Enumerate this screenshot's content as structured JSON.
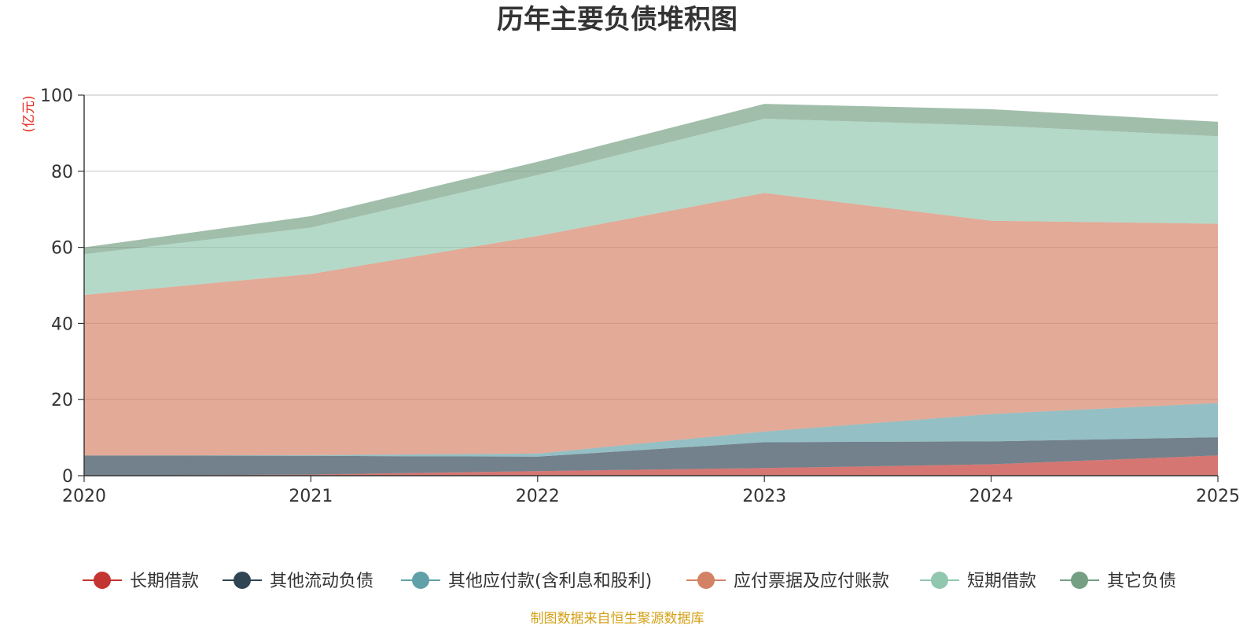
{
  "chart_data": {
    "type": "area",
    "stacked": true,
    "title": "历年主要负债堆积图",
    "unit_label": "(亿元)",
    "categories": [
      "2020",
      "2021",
      "2022",
      "2023",
      "2024",
      "2025"
    ],
    "ylim": [
      0,
      100
    ],
    "yticks": [
      0,
      20,
      40,
      60,
      80,
      100
    ],
    "grid": true,
    "legend_position": "bottom",
    "series": [
      {
        "name": "长期借款",
        "values": [
          0.0,
          0.3,
          1.2,
          2.0,
          3.0,
          5.3
        ]
      },
      {
        "name": "其他流动负债",
        "values": [
          5.3,
          4.9,
          3.8,
          6.8,
          6.0,
          4.8
        ]
      },
      {
        "name": "其他应付款(含利息和股利)",
        "values": [
          0.0,
          0.2,
          0.8,
          2.8,
          7.2,
          9.0
        ]
      },
      {
        "name": "应付票据及应付账款",
        "values": [
          42.2,
          47.6,
          57.2,
          62.7,
          50.8,
          47.1
        ]
      },
      {
        "name": "短期借款",
        "values": [
          10.7,
          12.2,
          16.0,
          19.5,
          25.0,
          23.0
        ]
      },
      {
        "name": "其它负债",
        "values": [
          1.8,
          3.0,
          3.5,
          3.9,
          4.3,
          3.8
        ]
      }
    ],
    "source": "制图数据来自恒生聚源数据库"
  },
  "colors": {
    "series": [
      "#c23531",
      "#2f4554",
      "#61a0a8",
      "#d48265",
      "#91c7ae",
      "#749f83"
    ],
    "unit": "#e8291c",
    "source": "#d4a017",
    "axis": "#333333",
    "grid": "#cccccc"
  }
}
